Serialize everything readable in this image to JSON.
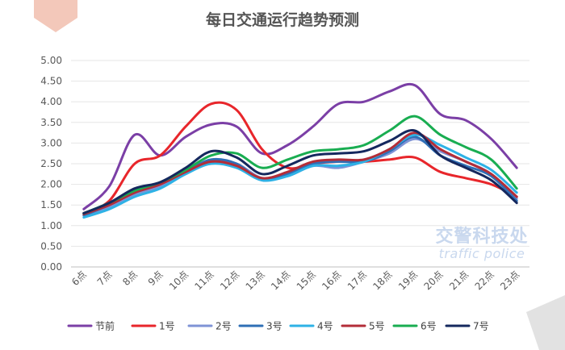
{
  "colors": {
    "corner_left": "#f3c8ba",
    "corner_right": "#e2e2e2",
    "watermark": "#c9d8ee"
  },
  "watermark": {
    "cn": "交警科技处",
    "en": "traffic police"
  },
  "chart_data": {
    "type": "line",
    "title": "每日交通运行趋势预测",
    "xlabel": "",
    "ylabel": "",
    "ylim": [
      0,
      5
    ],
    "yticks": [
      "0.00",
      "0.50",
      "1.00",
      "1.50",
      "2.00",
      "2.50",
      "3.00",
      "3.50",
      "4.00",
      "4.50",
      "5.00"
    ],
    "categories": [
      "6点",
      "7点",
      "8点",
      "9点",
      "10点",
      "11点",
      "12点",
      "13点",
      "14点",
      "15点",
      "16点",
      "17点",
      "18点",
      "19点",
      "20点",
      "21点",
      "22点",
      "23点"
    ],
    "grid": true,
    "legend_position": "bottom",
    "series": [
      {
        "name": "节前",
        "color": "#7b3fa6",
        "values": [
          1.4,
          1.95,
          3.2,
          2.7,
          3.15,
          3.45,
          3.4,
          2.75,
          2.95,
          3.4,
          3.95,
          4.0,
          4.25,
          4.4,
          3.7,
          3.55,
          3.1,
          2.4
        ]
      },
      {
        "name": "1号",
        "color": "#e8262b",
        "values": [
          1.3,
          1.6,
          2.5,
          2.7,
          3.4,
          3.95,
          3.8,
          2.85,
          2.4,
          2.5,
          2.55,
          2.55,
          2.6,
          2.65,
          2.3,
          2.15,
          2.0,
          1.7
        ]
      },
      {
        "name": "2号",
        "color": "#7f93d6",
        "values": [
          1.25,
          1.45,
          1.75,
          1.95,
          2.25,
          2.55,
          2.5,
          2.15,
          2.2,
          2.45,
          2.4,
          2.55,
          2.75,
          3.1,
          2.8,
          2.55,
          2.25,
          1.65
        ]
      },
      {
        "name": "3号",
        "color": "#2f6fb6",
        "values": [
          1.25,
          1.5,
          1.8,
          2.0,
          2.3,
          2.6,
          2.5,
          2.1,
          2.25,
          2.5,
          2.55,
          2.55,
          2.8,
          3.15,
          2.7,
          2.45,
          2.2,
          1.6
        ]
      },
      {
        "name": "4号",
        "color": "#2eb2e6",
        "values": [
          1.2,
          1.4,
          1.7,
          1.9,
          2.25,
          2.5,
          2.4,
          2.1,
          2.2,
          2.45,
          2.45,
          2.55,
          2.85,
          3.2,
          2.95,
          2.65,
          2.35,
          1.8
        ]
      },
      {
        "name": "5号",
        "color": "#b32d38",
        "values": [
          1.28,
          1.5,
          1.8,
          2.0,
          2.3,
          2.55,
          2.45,
          2.15,
          2.3,
          2.55,
          2.6,
          2.6,
          2.85,
          3.25,
          2.85,
          2.55,
          2.25,
          1.7
        ]
      },
      {
        "name": "6号",
        "color": "#19ad51",
        "values": [
          1.3,
          1.55,
          1.85,
          2.05,
          2.35,
          2.7,
          2.75,
          2.4,
          2.6,
          2.8,
          2.85,
          2.95,
          3.3,
          3.65,
          3.2,
          2.9,
          2.6,
          1.9
        ]
      },
      {
        "name": "7号",
        "color": "#15285e",
        "values": [
          1.3,
          1.55,
          1.9,
          2.05,
          2.4,
          2.8,
          2.65,
          2.25,
          2.45,
          2.7,
          2.75,
          2.8,
          3.05,
          3.3,
          2.7,
          2.4,
          2.1,
          1.55
        ]
      }
    ]
  }
}
